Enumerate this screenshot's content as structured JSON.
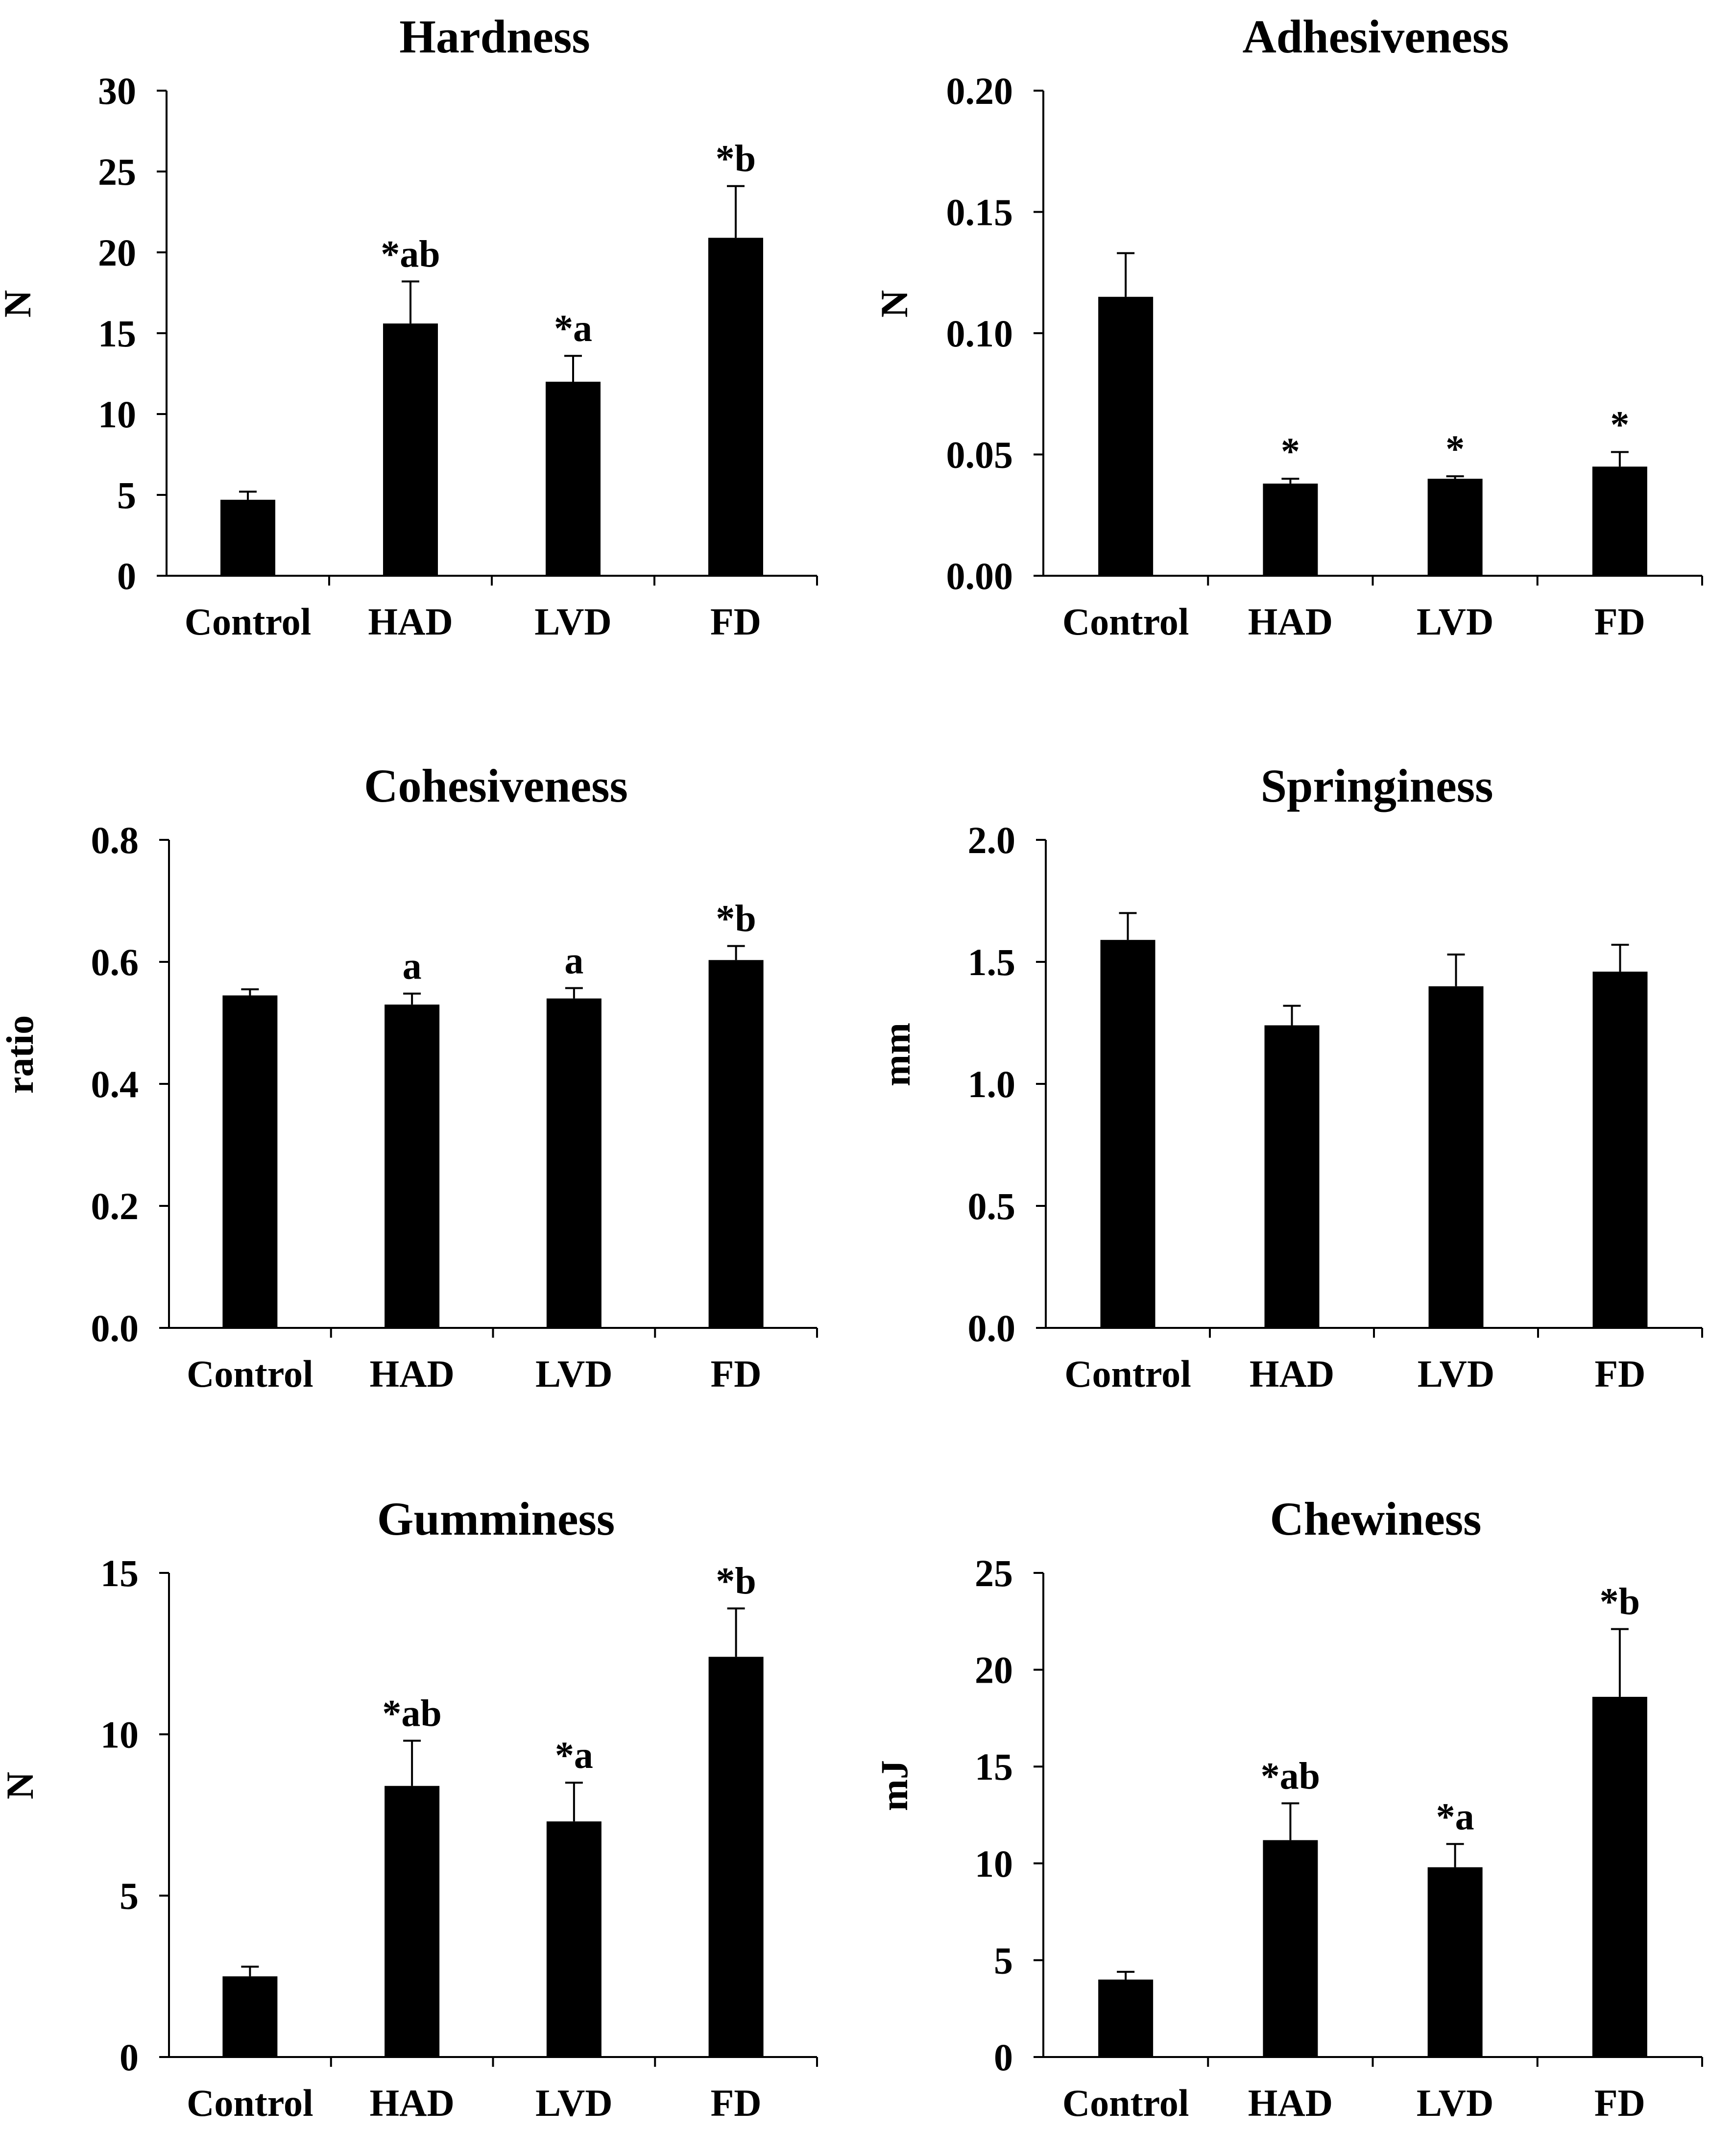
{
  "categories": [
    "Control",
    "HAD",
    "LVD",
    "FD"
  ],
  "chart_data": [
    {
      "type": "bar",
      "title": "Hardness",
      "ylabel": "N",
      "categories": [
        "Control",
        "HAD",
        "LVD",
        "FD"
      ],
      "values": [
        4.7,
        15.6,
        12.0,
        20.9
      ],
      "errors": [
        0.5,
        2.6,
        1.6,
        3.2
      ],
      "annotations": [
        "",
        "*ab",
        "*a",
        "*b"
      ],
      "ylim": [
        0,
        30
      ],
      "yticks": [
        0,
        5,
        10,
        15,
        20,
        25,
        30
      ],
      "ytick_labels": [
        "0",
        "5",
        "10",
        "15",
        "20",
        "25",
        "30"
      ]
    },
    {
      "type": "bar",
      "title": "Adhesiveness",
      "ylabel": "N",
      "categories": [
        "Control",
        "HAD",
        "LVD",
        "FD"
      ],
      "values": [
        0.115,
        0.038,
        0.04,
        0.045
      ],
      "errors": [
        0.018,
        0.002,
        0.001,
        0.006
      ],
      "annotations": [
        "",
        "*",
        "*",
        "*"
      ],
      "ylim": [
        0,
        0.2
      ],
      "yticks": [
        0,
        0.05,
        0.1,
        0.15,
        0.2
      ],
      "ytick_labels": [
        "0.00",
        "0.05",
        "0.10",
        "0.15",
        "0.20"
      ]
    },
    {
      "type": "bar",
      "title": "Cohesiveness",
      "ylabel": "ratio",
      "categories": [
        "Control",
        "HAD",
        "LVD",
        "FD"
      ],
      "values": [
        0.545,
        0.53,
        0.54,
        0.603
      ],
      "errors": [
        0.01,
        0.018,
        0.017,
        0.023
      ],
      "annotations": [
        "",
        "a",
        "a",
        "*b"
      ],
      "ylim": [
        0,
        0.8
      ],
      "yticks": [
        0,
        0.2,
        0.4,
        0.6,
        0.8
      ],
      "ytick_labels": [
        "0.0",
        "0.2",
        "0.4",
        "0.6",
        "0.8"
      ]
    },
    {
      "type": "bar",
      "title": "Springiness",
      "ylabel": "mm",
      "categories": [
        "Control",
        "HAD",
        "LVD",
        "FD"
      ],
      "values": [
        1.59,
        1.24,
        1.4,
        1.46
      ],
      "errors": [
        0.11,
        0.08,
        0.13,
        0.11
      ],
      "annotations": [
        "",
        "",
        "",
        ""
      ],
      "ylim": [
        0,
        2
      ],
      "yticks": [
        0,
        0.5,
        1,
        1.5,
        2
      ],
      "ytick_labels": [
        "0.0",
        "0.5",
        "1.0",
        "1.5",
        "2.0"
      ]
    },
    {
      "type": "bar",
      "title": "Gumminess",
      "ylabel": "N",
      "categories": [
        "Control",
        "HAD",
        "LVD",
        "FD"
      ],
      "values": [
        2.5,
        8.4,
        7.3,
        12.4
      ],
      "errors": [
        0.3,
        1.4,
        1.2,
        1.5
      ],
      "annotations": [
        "",
        "*ab",
        "*a",
        "*b"
      ],
      "ylim": [
        0,
        15
      ],
      "yticks": [
        0,
        5,
        10,
        15
      ],
      "ytick_labels": [
        "0",
        "5",
        "10",
        "15"
      ]
    },
    {
      "type": "bar",
      "title": "Chewiness",
      "ylabel": "mJ",
      "categories": [
        "Control",
        "HAD",
        "LVD",
        "FD"
      ],
      "values": [
        4.0,
        11.2,
        9.8,
        18.6
      ],
      "errors": [
        0.4,
        1.9,
        1.2,
        3.5
      ],
      "annotations": [
        "",
        "*ab",
        "*a",
        "*b"
      ],
      "ylim": [
        0,
        25
      ],
      "yticks": [
        0,
        5,
        10,
        15,
        20,
        25
      ],
      "ytick_labels": [
        "0",
        "5",
        "10",
        "15",
        "20",
        "25"
      ]
    }
  ]
}
